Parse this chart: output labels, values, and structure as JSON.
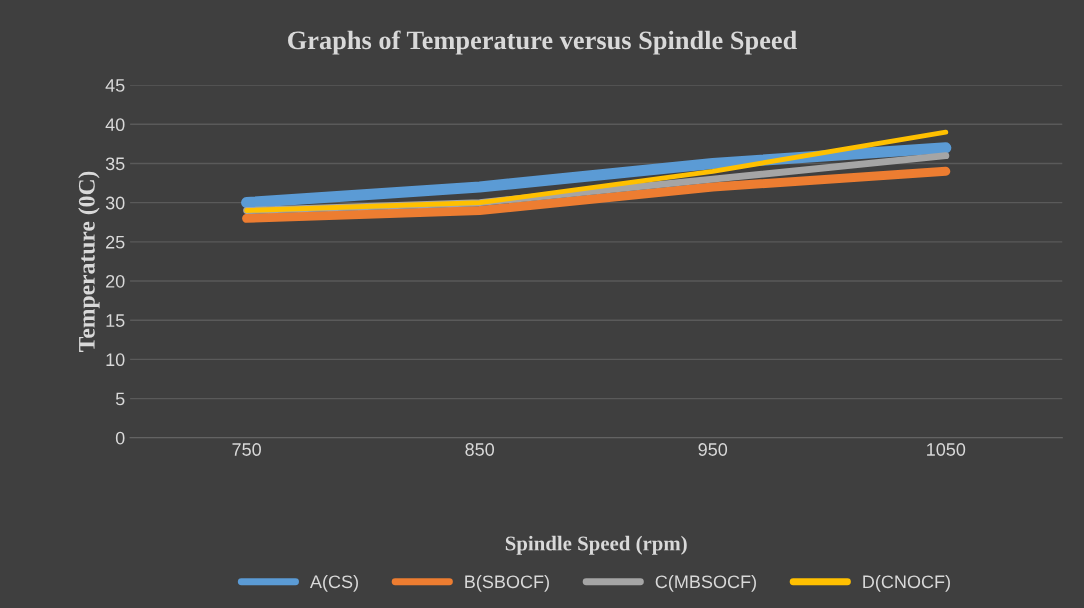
{
  "chart_data": {
    "type": "line",
    "title": "Graphs of Temperature versus Spindle Speed",
    "xlabel": "Spindle Speed (rpm)",
    "ylabel": "Temperature (0C)",
    "categories": [
      "750",
      "850",
      "950",
      "1050"
    ],
    "series": [
      {
        "name": "A(CS)",
        "color": "#5b9bd5",
        "values": [
          30,
          32,
          35,
          37
        ]
      },
      {
        "name": "B(SBOCF)",
        "color": "#ed7d31",
        "values": [
          28,
          29,
          32,
          34
        ]
      },
      {
        "name": "C(MBSOCF)",
        "color": "#a5a5a5",
        "values": [
          29,
          30,
          33,
          36
        ]
      },
      {
        "name": "D(CNOCF)",
        "color": "#ffc000",
        "values": [
          29,
          30,
          34,
          39
        ]
      }
    ],
    "ylim": [
      0,
      45
    ],
    "yticks": [
      0,
      5,
      10,
      15,
      20,
      25,
      30,
      35,
      40,
      45
    ],
    "grid": "y",
    "legend": "bottom",
    "marker": "none",
    "line_style": "solid"
  }
}
